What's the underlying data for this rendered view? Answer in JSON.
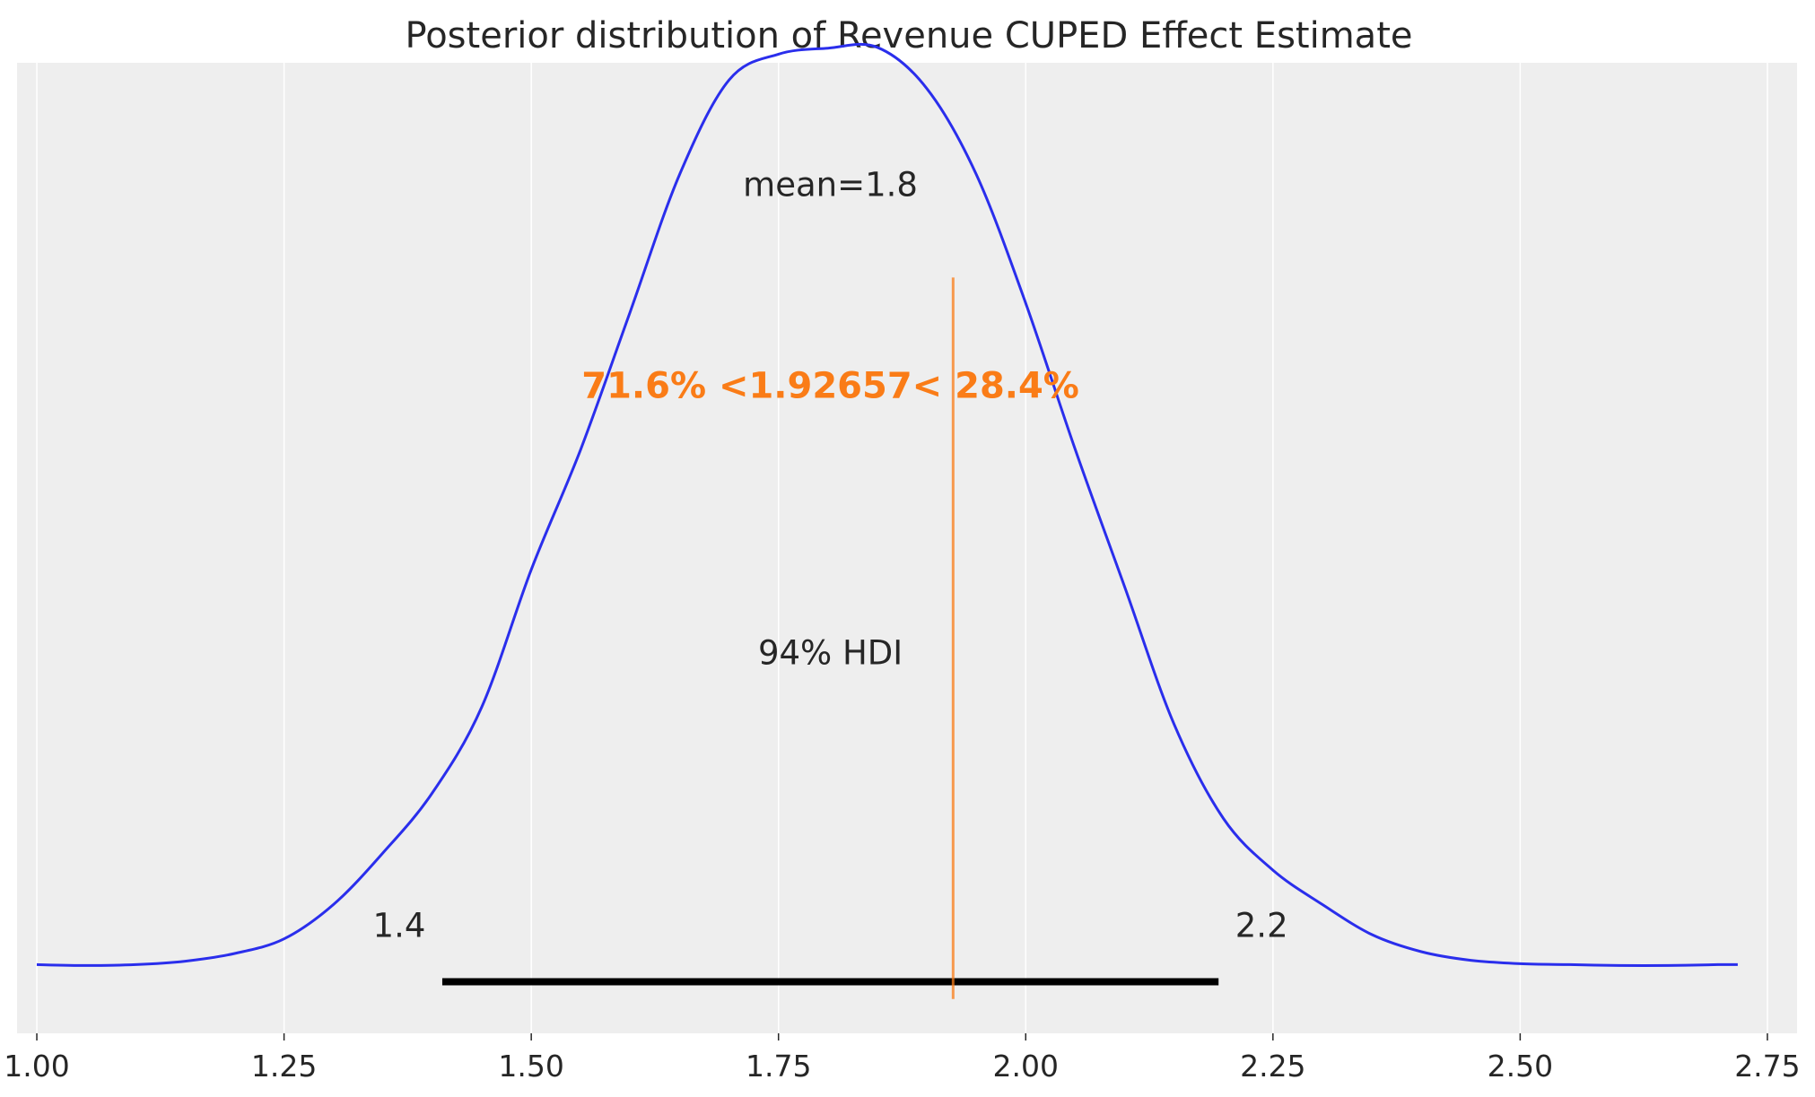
{
  "chart_data": {
    "type": "area",
    "title": "Posterior distribution of Revenue CUPED Effect Estimate",
    "xlabel": "",
    "ylabel": "",
    "xlim": [
      0.98,
      2.78
    ],
    "ylim": [
      -0.08,
      1.05
    ],
    "grid": true,
    "xticks": [
      1.0,
      1.25,
      1.5,
      1.75,
      2.0,
      2.25,
      2.5,
      2.75
    ],
    "xtick_labels": [
      "1.00",
      "1.25",
      "1.50",
      "1.75",
      "2.00",
      "2.25",
      "2.50",
      "2.75"
    ],
    "series": [
      {
        "x": [
          1.0,
          1.05,
          1.1,
          1.15,
          1.2,
          1.25,
          1.3,
          1.35,
          1.4,
          1.45,
          1.5,
          1.55,
          1.6,
          1.65,
          1.7,
          1.75,
          1.8,
          1.85,
          1.9,
          1.95,
          2.0,
          2.05,
          2.1,
          2.15,
          2.2,
          2.25,
          2.3,
          2.35,
          2.4,
          2.45,
          2.5,
          2.55,
          2.6,
          2.65,
          2.7,
          2.72
        ],
        "density": [
          0.0,
          -0.001,
          0.0,
          0.004,
          0.013,
          0.03,
          0.07,
          0.13,
          0.2,
          0.3,
          0.46,
          0.6,
          0.76,
          0.92,
          1.03,
          1.06,
          1.067,
          1.068,
          1.02,
          0.92,
          0.77,
          0.6,
          0.44,
          0.28,
          0.17,
          0.11,
          0.07,
          0.035,
          0.015,
          0.005,
          0.001,
          0.0,
          -0.001,
          -0.001,
          0.0,
          0.0
        ],
        "color": "#2a2eec"
      }
    ],
    "annotations": {
      "mean_label": "mean=1.8",
      "hdi_label": "94% HDI",
      "hdi_low": 1.41,
      "hdi_high": 2.195,
      "hdi_low_label": "1.4",
      "hdi_high_label": "2.2",
      "ref_val": 1.92657,
      "ref_label": "71.6% <1.92657< 28.4%",
      "ref_color": "#fa7c17"
    },
    "colors": {
      "background": "#eeeeee",
      "grid": "#ffffff",
      "hdi_bar": "#000000",
      "text": "#262626"
    }
  }
}
